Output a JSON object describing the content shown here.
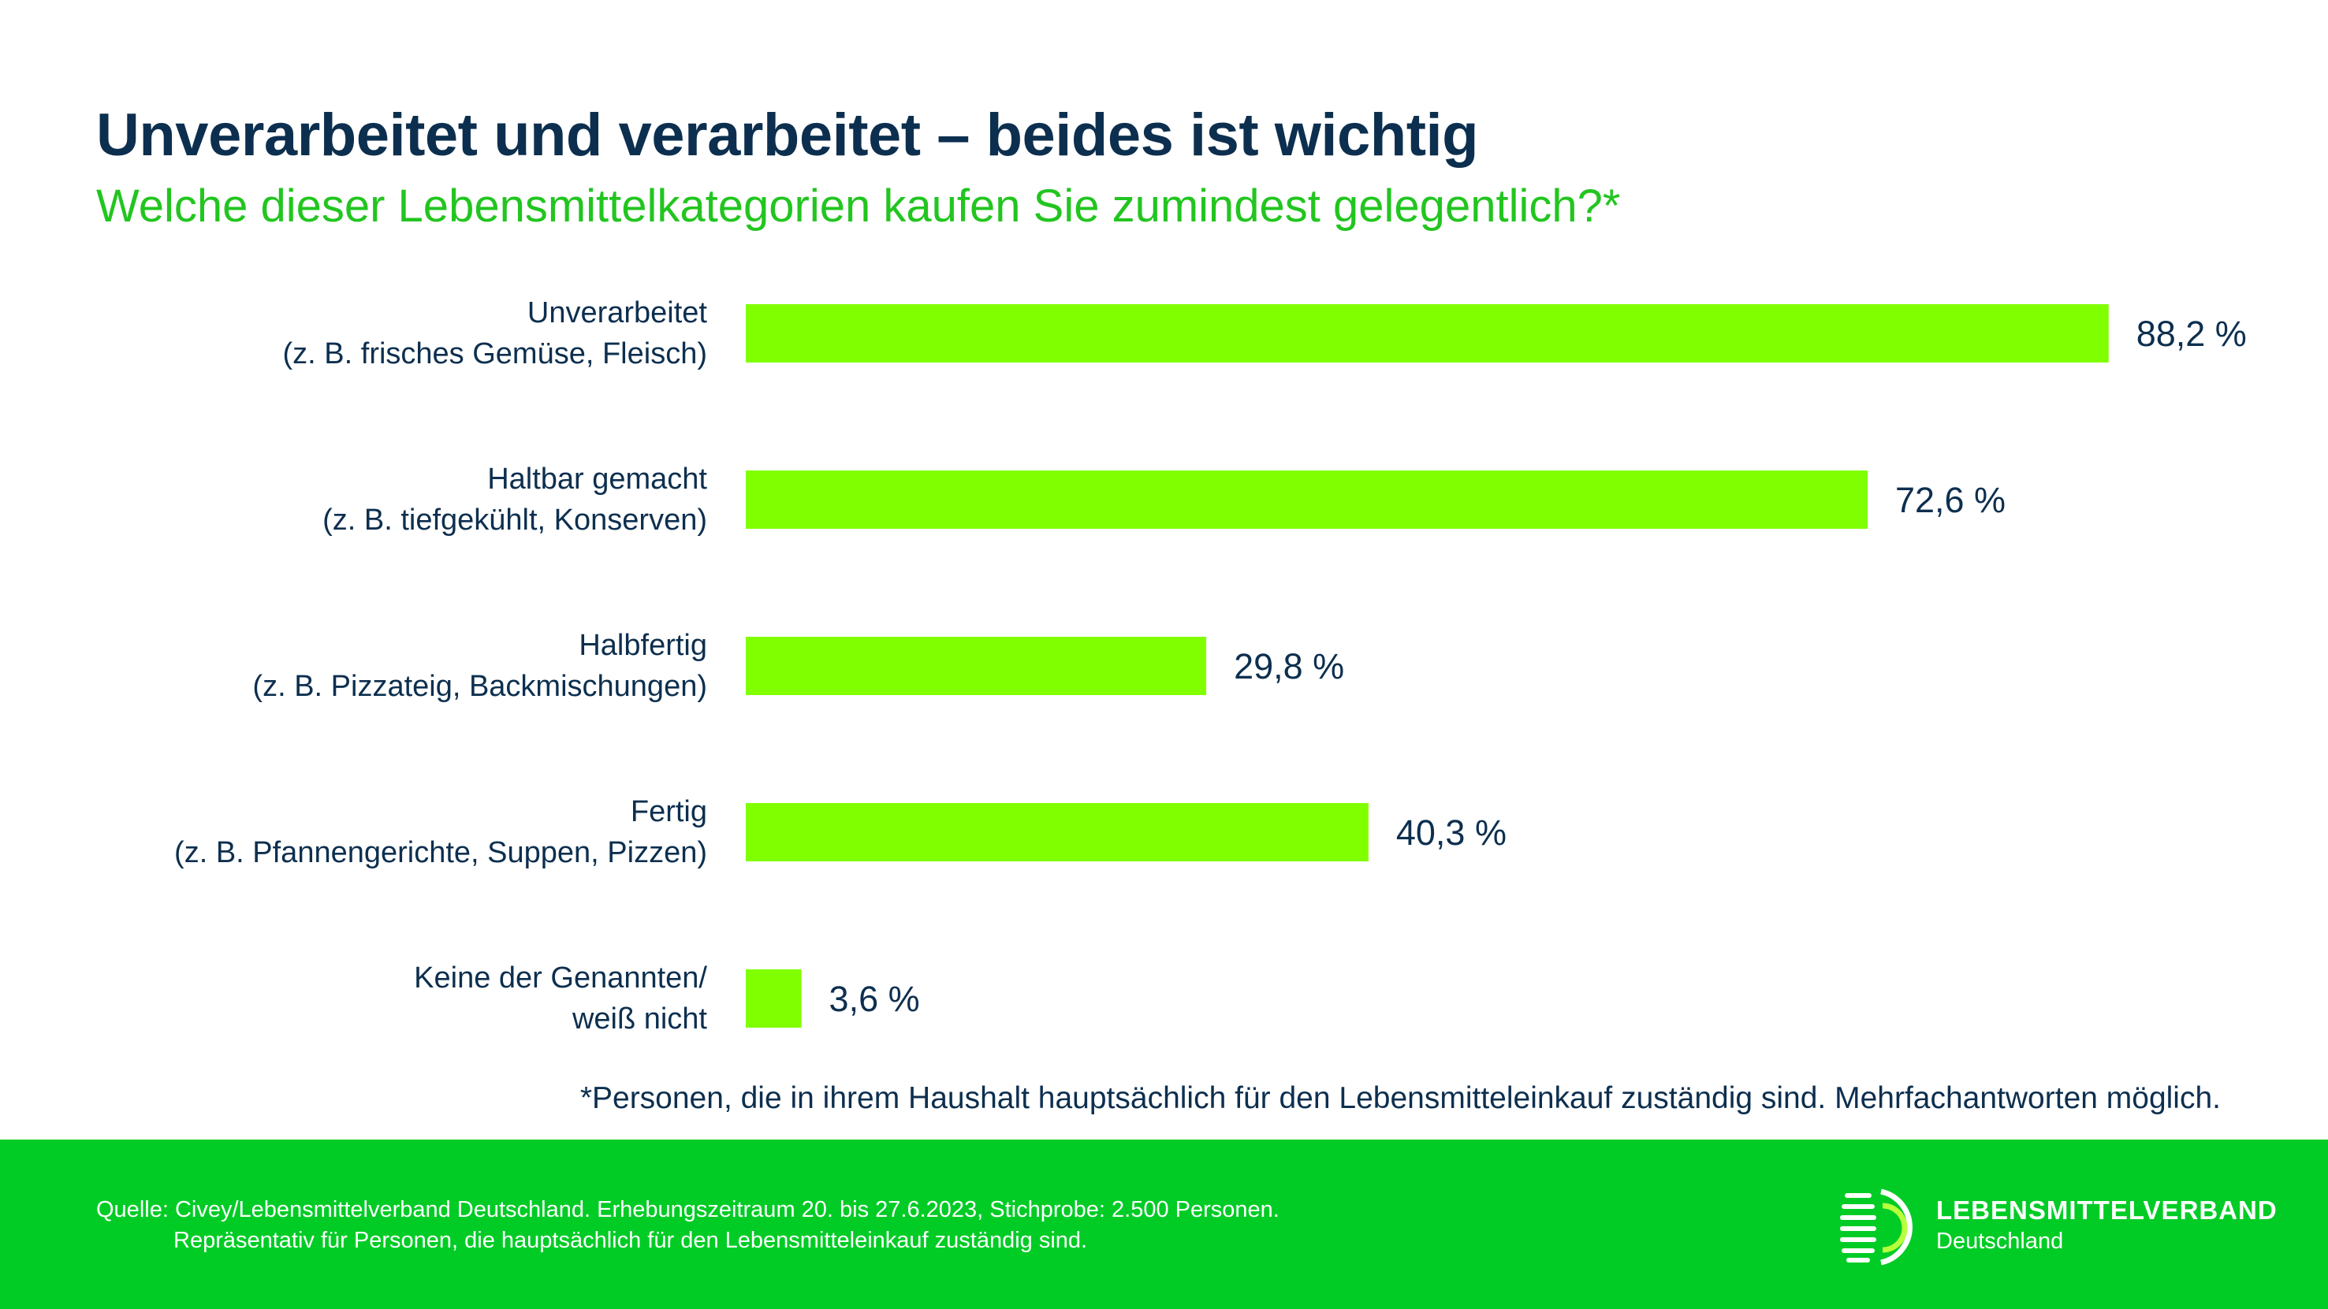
{
  "header": {
    "title": "Unverarbeitet und verarbeitet – beides ist wichtig",
    "subtitle": "Welche dieser Lebensmittelkategorien kaufen Sie zumindest gelegentlich?*"
  },
  "chart_data": {
    "type": "bar",
    "orientation": "horizontal",
    "categories": [
      [
        "Unverarbeitet",
        "(z. B. frisches Gemüse, Fleisch)"
      ],
      [
        "Haltbar gemacht",
        "(z. B. tiefgekühlt, Konserven)"
      ],
      [
        "Halbfertig",
        "(z. B. Pizzateig, Backmischungen)"
      ],
      [
        "Fertig",
        "(z. B. Pfannengerichte, Suppen, Pizzen)"
      ],
      [
        "Keine der Genannten/",
        "weiß nicht"
      ]
    ],
    "values": [
      88.2,
      72.6,
      29.8,
      40.3,
      3.6
    ],
    "value_labels": [
      "88,2 %",
      "72,6 %",
      "29,8 %",
      "40,3 %",
      "3,6 %"
    ],
    "unit": "%",
    "xlim": [
      0,
      100
    ],
    "grid": false,
    "bar_color": "#80ff00"
  },
  "footnote": "*Personen, die in ihrem Haushalt hauptsächlich für den Lebensmitteleinkauf zuständig sind. Mehrfachantworten möglich.",
  "footer": {
    "source_line1": "Quelle: Civey/Lebensmittelverband Deutschland. Erhebungszeitraum 20. bis 27.6.2023, Stichprobe: 2.500 Personen.",
    "source_line2": "Repräsentativ für Personen, die hauptsächlich für den Lebensmitteleinkauf zuständig sind.",
    "brand_name": "LEBENSMITTELVERBAND",
    "brand_sub": "Deutschland",
    "background_color": "#00cc25"
  }
}
